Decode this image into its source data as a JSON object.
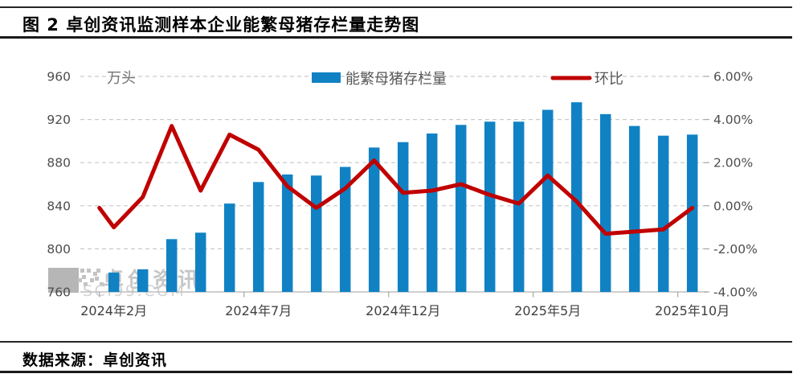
{
  "header": {
    "title": "图 2 卓创资讯监测样本企业能繁母猪存栏量走势图"
  },
  "footer": {
    "source_label": "数据来源：卓创资讯"
  },
  "watermark": {
    "brand": "卓创资讯",
    "site": "SCI99.COM"
  },
  "colors": {
    "bar": "#1082c4",
    "line": "#c00000",
    "grid": "#c9c9c9",
    "axis_line": "#bfbfbf",
    "tick": "#a6a6a6",
    "axis_text": "#4d4d4d",
    "x_text": "#404040",
    "legend_text": "#595959",
    "unit_text": "#737373",
    "watermark_box": "#b6b6b6",
    "watermark_dot": "#c3c3c3",
    "watermark_brand": "#c6c6c6",
    "watermark_site": "#d2d2d2"
  },
  "chart_data": {
    "type": "bar",
    "subtype": "combo-bar-line-dual-axis",
    "unit_label": "万头",
    "legend": [
      {
        "name": "能繁母猪存栏量",
        "marker": "bar"
      },
      {
        "name": "环比",
        "marker": "line"
      }
    ],
    "categories": [
      "2024年2月",
      "2024年3月",
      "2024年4月",
      "2024年5月",
      "2024年6月",
      "2024年7月",
      "2024年8月",
      "2024年9月",
      "2024年10月",
      "2024年11月",
      "2024年12月",
      "2025年1月",
      "2025年2月",
      "2025年3月",
      "2025年4月",
      "2025年5月",
      "2025年6月",
      "2025年7月",
      "2025年8月",
      "2025年9月",
      "2025年10月"
    ],
    "x_tick_labels": [
      "2024年2月",
      "2024年7月",
      "2024年12月",
      "2025年5月",
      "2025年10月"
    ],
    "x_tick_label_indices": [
      0,
      5,
      10,
      15,
      20
    ],
    "series": [
      {
        "name": "能繁母猪存栏量",
        "type": "bar",
        "axis": "left",
        "values": [
          778,
          781,
          809,
          815,
          842,
          862,
          869,
          868,
          876,
          894,
          899,
          907,
          915,
          918,
          918,
          929,
          936,
          925,
          914,
          905,
          906
        ]
      },
      {
        "name": "环比",
        "type": "line",
        "axis": "right",
        "values": [
          -1.0,
          0.4,
          3.7,
          0.7,
          3.3,
          2.6,
          0.9,
          -0.1,
          0.8,
          2.1,
          0.6,
          0.7,
          1.0,
          0.5,
          0.1,
          1.4,
          0.2,
          -1.3,
          -1.2,
          -1.1,
          -0.1
        ],
        "lead_in_point": {
          "offset_categories": -0.5,
          "value": -0.1
        }
      }
    ],
    "left_axis": {
      "ticks": [
        960,
        920,
        880,
        840,
        800,
        760
      ],
      "range": [
        760,
        960
      ]
    },
    "right_axis": {
      "tick_labels": [
        "6.00%",
        "4.00%",
        "2.00%",
        "0.00%",
        "-2.00%",
        "-4.00%"
      ],
      "tick_values": [
        6,
        4,
        2,
        0,
        -2,
        -4
      ],
      "range": [
        -4,
        6
      ]
    },
    "grid": "dashed-horizontal",
    "legend_position": "top-center"
  }
}
